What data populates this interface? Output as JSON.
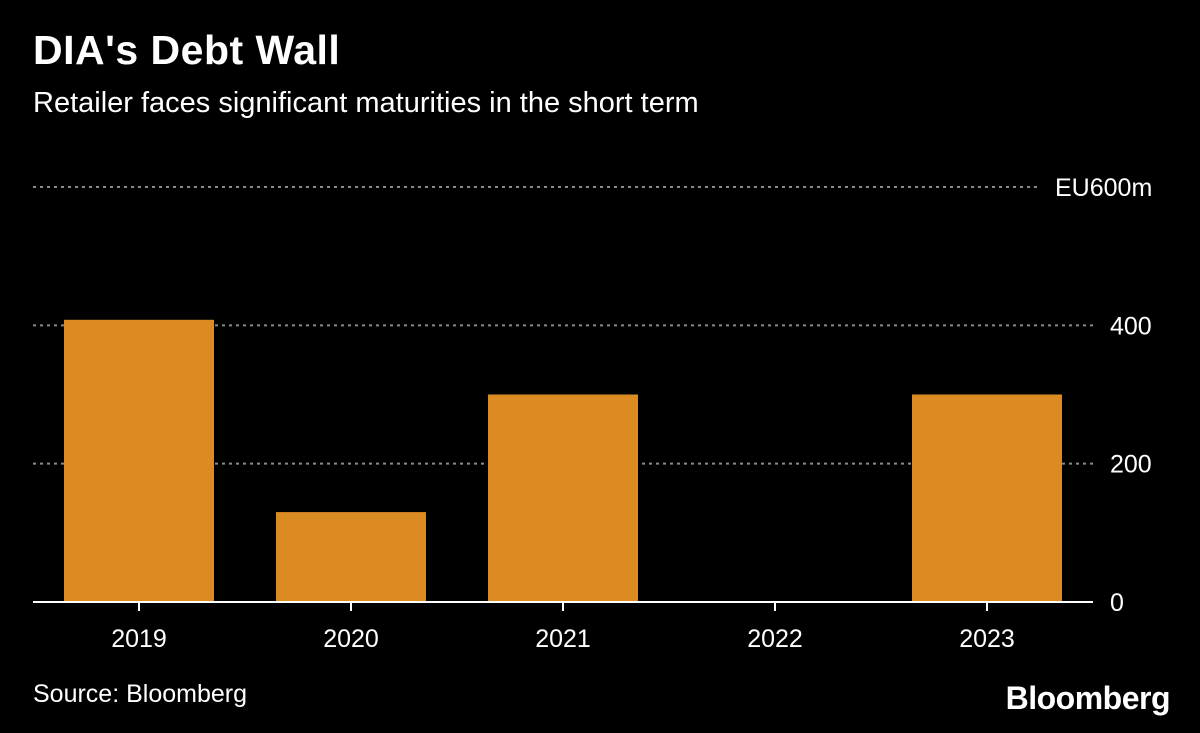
{
  "header": {
    "title": "DIA's Debt Wall",
    "subtitle": "Retailer faces significant maturities in the short term"
  },
  "footer": {
    "source": "Source: Bloomberg",
    "brand": "Bloomberg"
  },
  "colors": {
    "background": "#000000",
    "bar": "#dc8b23",
    "grid": "#8a8a8a",
    "axis": "#ffffff",
    "text": "#ffffff"
  },
  "chart_data": {
    "type": "bar",
    "title": "DIA's Debt Wall",
    "subtitle": "Retailer faces significant maturities in the short term",
    "xlabel": "",
    "ylabel": "",
    "categories": [
      "2019",
      "2020",
      "2021",
      "2022",
      "2023"
    ],
    "values": [
      408,
      130,
      300,
      0,
      300
    ],
    "ylim": [
      0,
      600
    ],
    "yticks": [
      0,
      200,
      400,
      600
    ],
    "ytick_labels": [
      "0",
      "200",
      "400",
      "EU600m"
    ],
    "grid": true,
    "y_axis_side": "right",
    "legend": "none"
  }
}
